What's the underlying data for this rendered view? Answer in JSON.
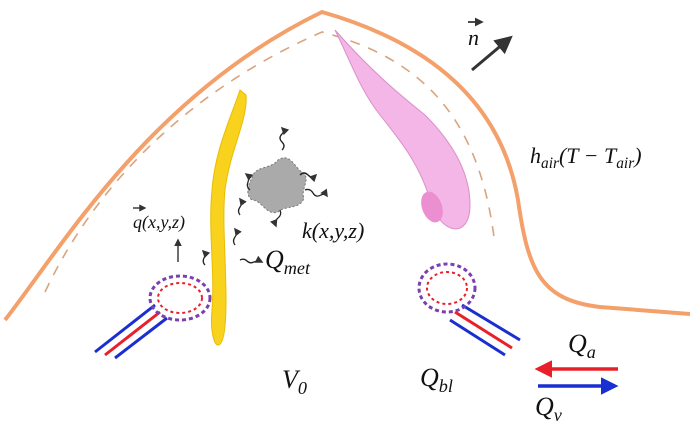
{
  "labels": {
    "normal": "n",
    "heat_loss": [
      "h",
      "air",
      "(T − T",
      "air",
      ")"
    ],
    "heat_flux": "q(x,y,z)",
    "conductivity": "k(x,y,z)",
    "metabolic": [
      "Q",
      "met"
    ],
    "volume": [
      "V",
      "0"
    ],
    "blood": [
      "Q",
      "bl"
    ],
    "arterial": [
      "Q",
      "a"
    ],
    "venous": [
      "Q",
      "v"
    ]
  }
}
